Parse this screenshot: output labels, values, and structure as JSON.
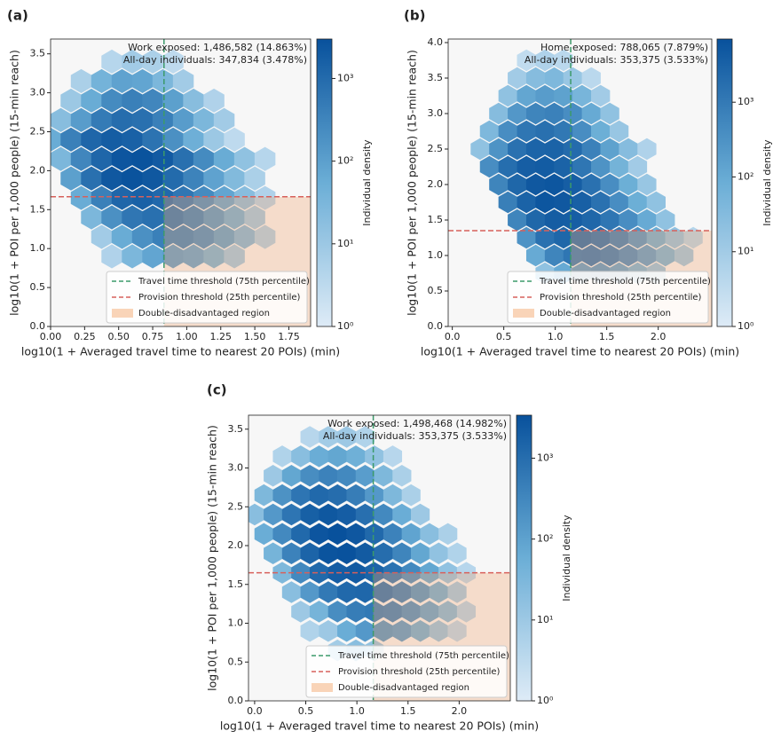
{
  "chart_data": [
    {
      "type": "hexbin",
      "panel_label": "(a)",
      "xlabel": "log10(1 + Averaged travel time to nearest 20 POIs) (min)",
      "ylabel": "log10(1 + POI per 1,000 people) (15-min reach)",
      "annotation": [
        "Work exposed: 1,486,582 (14.863%)",
        "All-day individuals: 347,834 (3.478%)"
      ],
      "xlim": [
        0,
        1.91
      ],
      "ylim": [
        0,
        3.69
      ],
      "xticks": [
        {
          "value": 0,
          "label": "0.00"
        },
        0.25,
        {
          "value": 0.5,
          "label": "0.50"
        },
        0.75,
        {
          "value": 1,
          "label": "1.00"
        },
        1.25,
        {
          "value": 1.5,
          "label": "1.50"
        },
        1.75
      ],
      "yticks": [
        {
          "value": 0,
          "label": "0.0"
        },
        0.5,
        {
          "value": 1,
          "label": "1.0"
        },
        1.5,
        {
          "value": 2,
          "label": "2.0"
        },
        2.5,
        {
          "value": 3,
          "label": "3.0"
        },
        3.5
      ],
      "clim": [
        1,
        3000
      ],
      "cticks": [
        {
          "value": 1,
          "label": "10⁰"
        },
        {
          "value": 10,
          "label": "10¹"
        },
        {
          "value": 100,
          "label": "10²"
        },
        {
          "value": 1000,
          "label": "10³"
        }
      ],
      "colorbar_label": "Individual density",
      "color_scale": "log",
      "x_threshold": 0.833,
      "y_threshold": 1.665,
      "legend": {
        "position": "lower right",
        "entries": [
          "Travel time threshold (75th percentile)",
          "Provision threshold (25th percentile)",
          "Double-disadvantaged region"
        ]
      },
      "hexbins": [
        {
          "y": 3.4,
          "x": [
            0.45,
            0.6,
            0.75,
            0.9
          ],
          "counts": [
            4,
            8,
            6,
            3
          ]
        },
        {
          "y": 3.15,
          "x": [
            0.225,
            0.375,
            0.525,
            0.675,
            0.825,
            0.975
          ],
          "counts": [
            6,
            40,
            90,
            80,
            30,
            8
          ]
        },
        {
          "y": 2.9,
          "x": [
            0.15,
            0.3,
            0.45,
            0.6,
            0.75,
            0.9,
            1.05,
            1.2
          ],
          "counts": [
            10,
            60,
            250,
            400,
            300,
            100,
            20,
            5
          ]
        },
        {
          "y": 2.65,
          "x": [
            0.075,
            0.225,
            0.375,
            0.525,
            0.675,
            0.825,
            0.975,
            1.125,
            1.275
          ],
          "counts": [
            20,
            120,
            500,
            900,
            800,
            400,
            120,
            30,
            8
          ]
        },
        {
          "y": 2.4,
          "x": [
            0,
            0.15,
            0.3,
            0.45,
            0.6,
            0.75,
            0.9,
            1.05,
            1.2,
            1.35
          ],
          "counts": [
            60,
            400,
            1200,
            1800,
            1500,
            700,
            200,
            50,
            10,
            3
          ]
        },
        {
          "y": 2.15,
          "x": [
            0.075,
            0.225,
            0.375,
            0.525,
            0.675,
            0.825,
            0.975,
            1.125,
            1.275,
            1.425,
            1.575
          ],
          "counts": [
            30,
            300,
            1200,
            2500,
            2800,
            2000,
            800,
            250,
            60,
            15,
            4
          ]
        },
        {
          "y": 1.9,
          "x": [
            0.15,
            0.3,
            0.45,
            0.6,
            0.75,
            0.9,
            1.05,
            1.2,
            1.35,
            1.5
          ],
          "counts": [
            100,
            800,
            2200,
            2800,
            2200,
            1000,
            350,
            90,
            25,
            6
          ]
        },
        {
          "y": 1.65,
          "x": [
            0.225,
            0.375,
            0.525,
            0.675,
            0.825,
            0.975,
            1.125,
            1.275,
            1.425,
            1.575
          ],
          "counts": [
            60,
            400,
            1200,
            1500,
            1100,
            600,
            250,
            80,
            20,
            5
          ]
        },
        {
          "y": 1.4,
          "x": [
            0.3,
            0.45,
            0.6,
            0.75,
            0.9,
            1.05,
            1.2,
            1.35,
            1.5
          ],
          "counts": [
            30,
            200,
            600,
            800,
            700,
            400,
            150,
            50,
            10
          ]
        },
        {
          "y": 1.15,
          "x": [
            0.375,
            0.525,
            0.675,
            0.825,
            0.975,
            1.125,
            1.275,
            1.425,
            1.575
          ],
          "counts": [
            8,
            60,
            200,
            400,
            400,
            250,
            100,
            30,
            6
          ]
        },
        {
          "y": 0.9,
          "x": [
            0.45,
            0.6,
            0.75,
            0.9,
            1.05,
            1.2,
            1.35
          ],
          "counts": [
            5,
            30,
            80,
            120,
            90,
            40,
            10
          ]
        }
      ]
    },
    {
      "type": "hexbin",
      "panel_label": "(b)",
      "xlabel": "log10(1 + Averaged travel time to nearest 20 POIs) (min)",
      "ylabel": "log10(1 + POI per 1,000 people) (15-min reach)",
      "annotation": [
        "Home exposed: 788,065 (7.879%)",
        "All-day individuals: 353,375 (3.533%)"
      ],
      "xlim": [
        -0.04,
        2.52
      ],
      "ylim": [
        0,
        4.05
      ],
      "xticks": [
        {
          "value": 0,
          "label": "0.0"
        },
        0.5,
        {
          "value": 1,
          "label": "1.0"
        },
        1.5,
        {
          "value": 2,
          "label": "2.0"
        }
      ],
      "yticks": [
        {
          "value": 0,
          "label": "0.0"
        },
        0.5,
        {
          "value": 1,
          "label": "1.0"
        },
        1.5,
        {
          "value": 2,
          "label": "2.0"
        },
        2.5,
        {
          "value": 3,
          "label": "3.0"
        },
        3.5,
        {
          "value": 4,
          "label": "4.0"
        }
      ],
      "clim": [
        1,
        7000
      ],
      "cticks": [
        {
          "value": 1,
          "label": "10⁰"
        },
        {
          "value": 10,
          "label": "10¹"
        },
        {
          "value": 100,
          "label": "10²"
        },
        {
          "value": 1000,
          "label": "10³"
        }
      ],
      "colorbar_label": "Individual density",
      "color_scale": "log",
      "x_threshold": 1.15,
      "y_threshold": 1.35,
      "legend": {
        "position": "lower right",
        "entries": [
          "Travel time threshold (75th percentile)",
          "Provision threshold (25th percentile)",
          "Double-disadvantaged region"
        ]
      },
      "hexbins": [
        {
          "y": 3.75,
          "x": [
            0.72,
            0.9,
            1.08
          ],
          "counts": [
            3,
            6,
            4
          ]
        },
        {
          "y": 3.5,
          "x": [
            0.63,
            0.81,
            0.99,
            1.17,
            1.35
          ],
          "counts": [
            10,
            30,
            40,
            15,
            4
          ]
        },
        {
          "y": 3.25,
          "x": [
            0.54,
            0.72,
            0.9,
            1.08,
            1.26,
            1.44
          ],
          "counts": [
            20,
            120,
            200,
            150,
            50,
            10
          ]
        },
        {
          "y": 3.0,
          "x": [
            0.45,
            0.63,
            0.81,
            0.99,
            1.17,
            1.35,
            1.53
          ],
          "counts": [
            30,
            250,
            600,
            700,
            400,
            100,
            20
          ]
        },
        {
          "y": 2.75,
          "x": [
            0.36,
            0.54,
            0.72,
            0.9,
            1.08,
            1.26,
            1.44,
            1.62
          ],
          "counts": [
            40,
            400,
            1200,
            1600,
            1100,
            400,
            80,
            15
          ]
        },
        {
          "y": 2.5,
          "x": [
            0.27,
            0.45,
            0.63,
            0.81,
            0.99,
            1.17,
            1.35,
            1.53,
            1.71,
            1.89
          ],
          "counts": [
            20,
            300,
            1500,
            2800,
            3000,
            2000,
            700,
            150,
            30,
            6
          ]
        },
        {
          "y": 2.25,
          "x": [
            0.36,
            0.54,
            0.72,
            0.9,
            1.08,
            1.26,
            1.44,
            1.62,
            1.8
          ],
          "counts": [
            400,
            1800,
            3800,
            4200,
            3000,
            1200,
            300,
            60,
            10
          ]
        },
        {
          "y": 2.0,
          "x": [
            0.45,
            0.63,
            0.81,
            0.99,
            1.17,
            1.35,
            1.53,
            1.71,
            1.89
          ],
          "counts": [
            600,
            2500,
            5000,
            5500,
            3800,
            1500,
            400,
            80,
            15
          ]
        },
        {
          "y": 1.75,
          "x": [
            0.54,
            0.72,
            0.9,
            1.08,
            1.26,
            1.44,
            1.62,
            1.8,
            1.98
          ],
          "counts": [
            800,
            3000,
            5500,
            5000,
            3500,
            1500,
            400,
            80,
            20
          ]
        },
        {
          "y": 1.5,
          "x": [
            0.63,
            0.81,
            0.99,
            1.17,
            1.35,
            1.53,
            1.71,
            1.89,
            2.07
          ],
          "counts": [
            600,
            2500,
            4000,
            3800,
            2500,
            1200,
            400,
            100,
            20
          ]
        },
        {
          "y": 1.25,
          "x": [
            0.72,
            0.9,
            1.08,
            1.26,
            1.44,
            1.62,
            1.8,
            1.98,
            2.16,
            2.34
          ],
          "counts": [
            300,
            1500,
            2500,
            2500,
            1800,
            900,
            300,
            80,
            20,
            5
          ]
        },
        {
          "y": 1.0,
          "x": [
            0.81,
            0.99,
            1.17,
            1.35,
            1.53,
            1.71,
            1.89,
            2.07,
            2.25
          ],
          "counts": [
            100,
            600,
            1200,
            1300,
            1000,
            500,
            200,
            60,
            15
          ]
        },
        {
          "y": 0.75,
          "x": [
            0.9,
            1.08,
            1.26,
            1.44,
            1.62,
            1.8,
            1.98
          ],
          "counts": [
            20,
            100,
            200,
            250,
            150,
            60,
            20
          ]
        }
      ]
    },
    {
      "type": "hexbin",
      "panel_label": "(c)",
      "xlabel": "log10(1 + Averaged travel time to nearest 20 POIs) (min)",
      "ylabel": "log10(1 + POI per 1,000 people) (15-min reach)",
      "annotation": [
        "Work exposed: 1,498,468 (14.982%)",
        "All-day individuals: 353,375 (3.533%)"
      ],
      "xlim": [
        -0.06,
        2.5
      ],
      "ylim": [
        0,
        3.68
      ],
      "xticks": [
        {
          "value": 0,
          "label": "0.0"
        },
        0.5,
        {
          "value": 1,
          "label": "1.0"
        },
        1.5,
        {
          "value": 2,
          "label": "2.0"
        }
      ],
      "yticks": [
        {
          "value": 0,
          "label": "0.0"
        },
        0.5,
        {
          "value": 1,
          "label": "1.0"
        },
        1.5,
        {
          "value": 2,
          "label": "2.0"
        },
        2.5,
        {
          "value": 3,
          "label": "3.0"
        },
        3.5
      ],
      "clim": [
        1,
        3400
      ],
      "cticks": [
        {
          "value": 1,
          "label": "10⁰"
        },
        {
          "value": 10,
          "label": "10¹"
        },
        {
          "value": 100,
          "label": "10²"
        },
        {
          "value": 1000,
          "label": "10³"
        }
      ],
      "colorbar_label": "Individual density",
      "color_scale": "log",
      "x_threshold": 1.16,
      "y_threshold": 1.65,
      "legend": {
        "position": "lower right",
        "entries": [
          "Travel time threshold (75th percentile)",
          "Provision threshold (25th percentile)",
          "Double-disadvantaged region"
        ]
      },
      "hexbins": [
        {
          "y": 3.4,
          "x": [
            0.54,
            0.72,
            0.9,
            1.08
          ],
          "counts": [
            4,
            8,
            10,
            5
          ]
        },
        {
          "y": 3.15,
          "x": [
            0.27,
            0.45,
            0.63,
            0.81,
            0.99,
            1.17,
            1.35
          ],
          "counts": [
            5,
            20,
            60,
            80,
            50,
            15,
            4
          ]
        },
        {
          "y": 2.9,
          "x": [
            0.18,
            0.36,
            0.54,
            0.72,
            0.9,
            1.08,
            1.26,
            1.44
          ],
          "counts": [
            10,
            80,
            250,
            400,
            300,
            120,
            30,
            6
          ]
        },
        {
          "y": 2.65,
          "x": [
            0.09,
            0.27,
            0.45,
            0.63,
            0.81,
            0.99,
            1.17,
            1.35,
            1.53
          ],
          "counts": [
            30,
            200,
            700,
            1200,
            1000,
            500,
            150,
            30,
            6
          ]
        },
        {
          "y": 2.4,
          "x": [
            0,
            0.18,
            0.36,
            0.54,
            0.72,
            0.9,
            1.08,
            1.26,
            1.44,
            1.62
          ],
          "counts": [
            20,
            150,
            700,
            1800,
            2500,
            2000,
            900,
            300,
            60,
            10
          ]
        },
        {
          "y": 2.15,
          "x": [
            0.09,
            0.27,
            0.45,
            0.63,
            0.81,
            0.99,
            1.17,
            1.35,
            1.53,
            1.71,
            1.89
          ],
          "counts": [
            60,
            300,
            1200,
            2800,
            3400,
            2600,
            1200,
            400,
            90,
            20,
            6
          ]
        },
        {
          "y": 1.9,
          "x": [
            0.18,
            0.36,
            0.54,
            0.72,
            0.9,
            1.08,
            1.26,
            1.44,
            1.62,
            1.8,
            1.98
          ],
          "counts": [
            40,
            400,
            1500,
            3000,
            3200,
            2200,
            1000,
            350,
            80,
            15,
            5
          ]
        },
        {
          "y": 1.65,
          "x": [
            0.27,
            0.45,
            0.63,
            0.81,
            0.99,
            1.17,
            1.35,
            1.53,
            1.71,
            1.89,
            2.07
          ],
          "counts": [
            30,
            300,
            1200,
            2000,
            2200,
            1500,
            800,
            300,
            80,
            15,
            4
          ]
        },
        {
          "y": 1.4,
          "x": [
            0.36,
            0.54,
            0.72,
            0.9,
            1.08,
            1.26,
            1.44,
            1.62,
            1.8,
            1.98
          ],
          "counts": [
            20,
            150,
            600,
            1200,
            1300,
            1000,
            500,
            200,
            60,
            10
          ]
        },
        {
          "y": 1.15,
          "x": [
            0.45,
            0.63,
            0.81,
            0.99,
            1.17,
            1.35,
            1.53,
            1.71,
            1.89,
            2.07
          ],
          "counts": [
            10,
            40,
            250,
            500,
            600,
            500,
            250,
            100,
            30,
            5
          ]
        },
        {
          "y": 0.9,
          "x": [
            0.54,
            0.72,
            0.9,
            1.08,
            1.26,
            1.44,
            1.62,
            1.8,
            1.98
          ],
          "counts": [
            5,
            10,
            60,
            150,
            200,
            150,
            60,
            15,
            4
          ]
        },
        {
          "y": 0.65,
          "x": [
            0.81,
            0.99,
            1.17
          ],
          "counts": [
            8,
            20,
            15
          ]
        }
      ]
    }
  ]
}
